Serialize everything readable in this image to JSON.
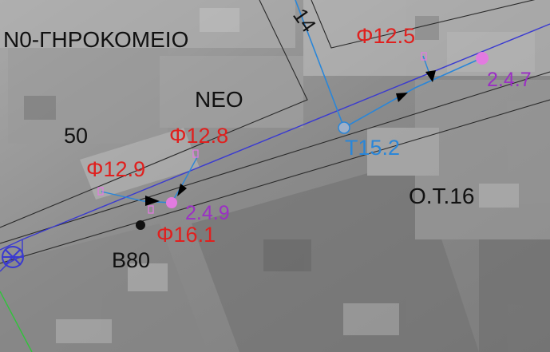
{
  "map": {
    "labels": {
      "nursing_home": "N0-ΓΗΡΟΚΟΜΕΙΟ",
      "neo": "NEO",
      "parcel_50": "50",
      "block_ot16": "O.T.16",
      "b80": "B80",
      "street_14": "14",
      "phi_12_5": "Φ12.5",
      "phi_12_8": "Φ12.8",
      "phi_12_9": "Φ12.9",
      "phi_16_1": "Φ16.1",
      "node_247": "2.4.7",
      "node_249": "2.4.9",
      "t_15_2": "T15.2"
    },
    "colors": {
      "pipe_line": "#3a3ad0",
      "water_line": "#2a86d8",
      "diameter_text": "#e0201e",
      "node_text": "#9b2fc4",
      "node_marker": "#e27be0",
      "green_line": "#2fc43a",
      "parcel_outline": "#2a2a2a"
    },
    "icons": [
      "flow-arrow-icon",
      "valve-node-icon",
      "borehole-dot-icon",
      "hydrant-symbol-icon"
    ]
  }
}
